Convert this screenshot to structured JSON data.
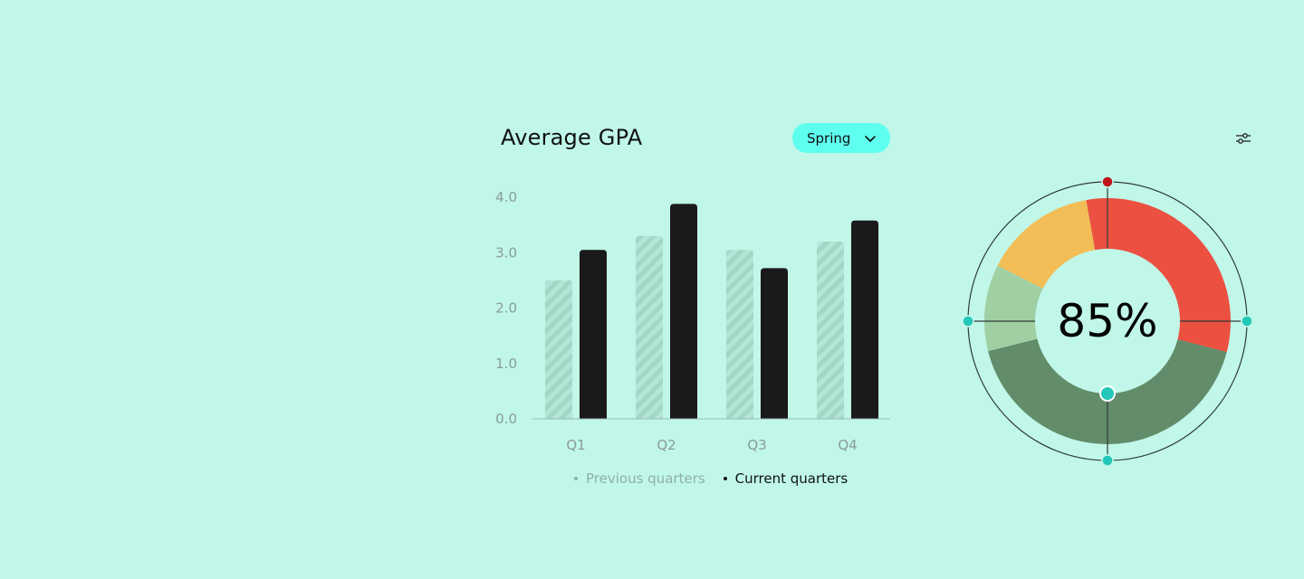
{
  "header": {
    "title": "Average GPA",
    "dropdown_value": "Spring"
  },
  "icons": {
    "dropdown": "chevron-down-icon",
    "settings": "sliders-icon"
  },
  "colors": {
    "background": "#c0f7e8",
    "dropdown_bg": "#5ffff0",
    "current_bar": "#1a1a1a",
    "previous_bar": "#a3dccb",
    "handle": "#22c7b8",
    "handle_top": "#c0151a"
  },
  "chart_data": [
    {
      "type": "bar",
      "categories": [
        "Q1",
        "Q2",
        "Q3",
        "Q4"
      ],
      "series": [
        {
          "name": "Previous quarters",
          "values": [
            2.5,
            3.3,
            3.05,
            3.2
          ],
          "color": "#a3dccb",
          "pattern": "hatched"
        },
        {
          "name": "Current quarters",
          "values": [
            3.05,
            3.88,
            2.72,
            3.58
          ],
          "color": "#1a1a1a"
        }
      ],
      "yticks": [
        "0.0",
        "1.0",
        "2.0",
        "3.0",
        "4.0"
      ],
      "ylim": [
        0,
        4
      ],
      "legend_position": "bottom",
      "grid": false
    },
    {
      "type": "pie",
      "label": "85%",
      "start_angle_deg": -10,
      "segments": [
        {
          "value": 28,
          "color": "#eb5040"
        },
        {
          "value": 37,
          "color": "#628c6a"
        },
        {
          "value": 10,
          "color": "#a1cfa4"
        },
        {
          "value": 13,
          "color": "#f2bd57"
        }
      ]
    }
  ]
}
